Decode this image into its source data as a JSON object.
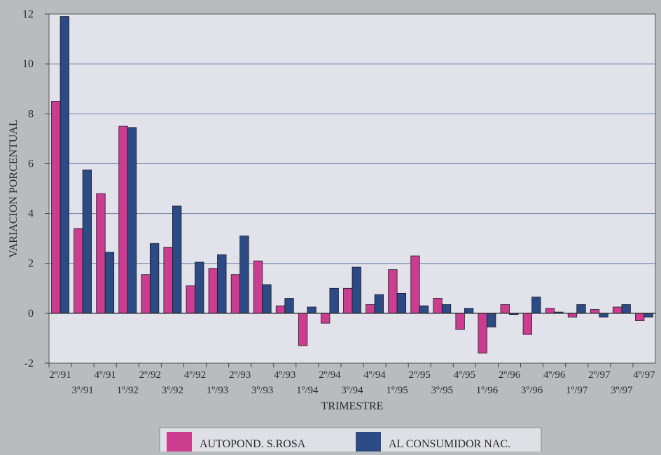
{
  "chart_data": {
    "type": "bar",
    "title": "",
    "xlabel": "TRIMESTRE",
    "ylabel": "VARIACION PORCENTUAL",
    "ylim": [
      -2,
      12
    ],
    "yticks": [
      -2,
      0,
      2,
      4,
      6,
      8,
      10,
      12
    ],
    "grid": true,
    "legend_position": "bottom-center",
    "categories": [
      "2º/91",
      "3º/91",
      "4º/91",
      "1º/92",
      "2º/92",
      "3º/92",
      "4º/92",
      "1º/93",
      "2º/93",
      "3º/93",
      "4º/93",
      "1º/94",
      "2º/94",
      "3º/94",
      "4º/94",
      "1º/95",
      "2º/95",
      "3º/95",
      "4º/95",
      "1º/96",
      "2º/96",
      "3º/96",
      "4º/96",
      "1º/97",
      "2º/97",
      "3º/97",
      "4º/97"
    ],
    "series": [
      {
        "name": "AUTOPOND. S.ROSA",
        "color": "#cc3d8f",
        "values": [
          8.5,
          3.4,
          4.8,
          7.5,
          1.55,
          2.65,
          1.1,
          1.8,
          1.55,
          2.1,
          0.3,
          -1.3,
          -0.4,
          1.0,
          0.35,
          1.75,
          2.3,
          0.6,
          -0.65,
          -1.6,
          0.35,
          -0.85,
          0.2,
          -0.15,
          0.15,
          0.25,
          -0.3
        ]
      },
      {
        "name": "AL CONSUMIDOR NAC.",
        "color": "#2c4a83",
        "values": [
          11.9,
          5.75,
          2.45,
          7.45,
          2.8,
          4.3,
          2.05,
          2.35,
          3.1,
          1.15,
          0.6,
          0.25,
          1.0,
          1.85,
          0.75,
          0.8,
          0.3,
          0.35,
          0.2,
          -0.55,
          -0.05,
          0.65,
          0.05,
          0.35,
          -0.15,
          0.35,
          -0.15
        ]
      }
    ],
    "colors": {
      "background": "#b9bcbf",
      "plot_area": "#e2e3ea",
      "grid": "#6e7fa6"
    }
  }
}
